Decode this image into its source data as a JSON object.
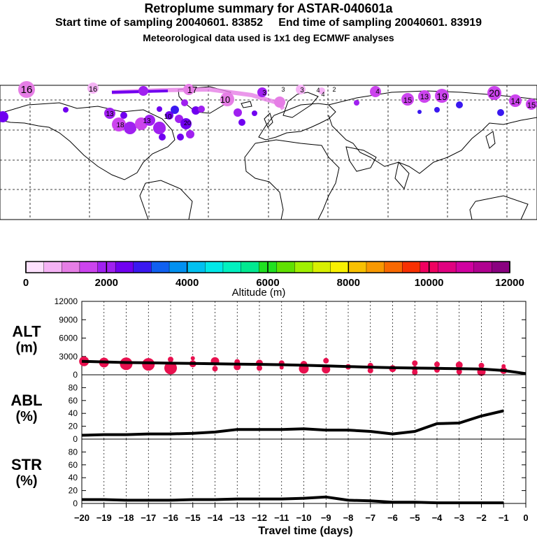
{
  "header": {
    "title": "Retroplume summary for ASTAR-040601a",
    "line2": "Start time of sampling 20040601. 83852     End time of sampling 20040601. 83919",
    "line3": "Meteorological data used is 1x1 deg ECMWF analyses"
  },
  "map": {
    "day_labels": [
      "16",
      "16",
      "17",
      "10",
      "3",
      "3",
      "3",
      "4",
      "4",
      "2",
      "4",
      "15",
      "13",
      "19",
      "20",
      "14",
      "15",
      "13",
      "18",
      "10",
      "13",
      "20"
    ]
  },
  "colorbar": {
    "colors": [
      "#fde1fd",
      "#f5b3f5",
      "#e67ee6",
      "#cc44ee",
      "#a020f0",
      "#7000f0",
      "#3a18f0",
      "#1060f0",
      "#0090f0",
      "#00c0f0",
      "#00e8e8",
      "#00f0c0",
      "#00e890",
      "#20e020",
      "#60e000",
      "#a0f000",
      "#d8f000",
      "#f8f000",
      "#f8c000",
      "#f89800",
      "#f86800",
      "#f83000",
      "#f00060",
      "#e00080",
      "#d000a0",
      "#b00090",
      "#8a0080"
    ],
    "tick_labels": [
      "0",
      "2000",
      "4000",
      "6000",
      "8000",
      "10000",
      "12000"
    ],
    "label": "Altitude (m)"
  },
  "chart_data": [
    {
      "type": "line",
      "name": "ALT",
      "ylabel": "ALT",
      "yunit": "(m)",
      "ylim": [
        0,
        12000
      ],
      "yticks": [
        "0",
        "3000",
        "6000",
        "9000",
        "12000"
      ],
      "x": [
        -20,
        -19,
        -18,
        -17,
        -16,
        -15,
        -14,
        -13,
        -12,
        -11,
        -10,
        -9,
        -8,
        -7,
        -6,
        -5,
        -4,
        -3,
        -2,
        -1,
        0
      ],
      "values": [
        2200,
        2100,
        2000,
        1950,
        1900,
        1850,
        1800,
        1750,
        1700,
        1650,
        1550,
        1450,
        1350,
        1250,
        1150,
        1100,
        1050,
        1000,
        950,
        700,
        200
      ],
      "markers": {
        "color": "#e8104e",
        "points": [
          {
            "x": -19.9,
            "y": 2200,
            "r": 7
          },
          {
            "x": -19.0,
            "y": 2000,
            "r": 7
          },
          {
            "x": -18.0,
            "y": 1800,
            "r": 9
          },
          {
            "x": -17.0,
            "y": 1700,
            "r": 9
          },
          {
            "x": -16.0,
            "y": 1100,
            "r": 9
          },
          {
            "x": -16.0,
            "y": 2500,
            "r": 4
          },
          {
            "x": -15.0,
            "y": 2700,
            "r": 3
          },
          {
            "x": -15.0,
            "y": 1800,
            "r": 5
          },
          {
            "x": -14.0,
            "y": 2200,
            "r": 6
          },
          {
            "x": -14.0,
            "y": 1000,
            "r": 4
          },
          {
            "x": -13.0,
            "y": 1300,
            "r": 5
          },
          {
            "x": -13.0,
            "y": 2100,
            "r": 4
          },
          {
            "x": -12.0,
            "y": 1900,
            "r": 5
          },
          {
            "x": -12.0,
            "y": 1100,
            "r": 4
          },
          {
            "x": -11.0,
            "y": 1900,
            "r": 4
          },
          {
            "x": -11.0,
            "y": 1200,
            "r": 3
          },
          {
            "x": -10.0,
            "y": 1000,
            "r": 7
          },
          {
            "x": -10.0,
            "y": 1700,
            "r": 5
          },
          {
            "x": -9.0,
            "y": 2300,
            "r": 4
          },
          {
            "x": -9.0,
            "y": 900,
            "r": 6
          },
          {
            "x": -8.0,
            "y": 1300,
            "r": 4
          },
          {
            "x": -7.0,
            "y": 1500,
            "r": 4
          },
          {
            "x": -7.0,
            "y": 700,
            "r": 4
          },
          {
            "x": -6.0,
            "y": 1000,
            "r": 5
          },
          {
            "x": -5.0,
            "y": 1900,
            "r": 4
          },
          {
            "x": -5.0,
            "y": 1000,
            "r": 4
          },
          {
            "x": -5.0,
            "y": 400,
            "r": 4
          },
          {
            "x": -4.0,
            "y": 1700,
            "r": 4
          },
          {
            "x": -4.0,
            "y": 800,
            "r": 4
          },
          {
            "x": -3.0,
            "y": 1600,
            "r": 5
          },
          {
            "x": -3.0,
            "y": 500,
            "r": 4
          },
          {
            "x": -2.0,
            "y": 1500,
            "r": 4
          },
          {
            "x": -2.0,
            "y": 500,
            "r": 6
          },
          {
            "x": -1.0,
            "y": 1400,
            "r": 3
          },
          {
            "x": -1.0,
            "y": 700,
            "r": 5
          }
        ]
      }
    },
    {
      "type": "line",
      "name": "ABL",
      "ylabel": "ABL",
      "yunit": "(%)",
      "ylim": [
        0,
        100
      ],
      "yticks": [
        "0",
        "20",
        "40",
        "60",
        "80"
      ],
      "x": [
        -20,
        -19,
        -18,
        -17,
        -16,
        -15,
        -14,
        -13,
        -12,
        -11,
        -10,
        -9,
        -8,
        -7,
        -6,
        -5,
        -4,
        -3,
        -2,
        -1
      ],
      "values": [
        6,
        7,
        7,
        8,
        8,
        9,
        11,
        15,
        15,
        15,
        16,
        14,
        14,
        12,
        8,
        12,
        24,
        25,
        36,
        44
      ]
    },
    {
      "type": "line",
      "name": "STR",
      "ylabel": "STR",
      "yunit": "(%)",
      "ylim": [
        0,
        100
      ],
      "yticks": [
        "0",
        "20",
        "40",
        "60",
        "80"
      ],
      "x": [
        -20,
        -19,
        -18,
        -17,
        -16,
        -15,
        -14,
        -13,
        -12,
        -11,
        -10,
        -9,
        -8,
        -7,
        -6,
        -5,
        -4,
        -3,
        -2,
        -1
      ],
      "values": [
        6,
        6,
        5,
        5,
        5,
        6,
        6,
        7,
        7,
        7,
        8,
        10,
        5,
        4,
        2,
        2,
        1,
        1,
        1,
        1
      ]
    }
  ],
  "x_axis": {
    "tick_labels": [
      "−20",
      "−19",
      "−18",
      "−17",
      "−16",
      "−15",
      "−14",
      "−13",
      "−12",
      "−11",
      "−10",
      "−9",
      "−8",
      "−7",
      "−6",
      "−5",
      "−4",
      "−3",
      "−2",
      "−1",
      "0"
    ],
    "label": "Travel time (days)"
  }
}
